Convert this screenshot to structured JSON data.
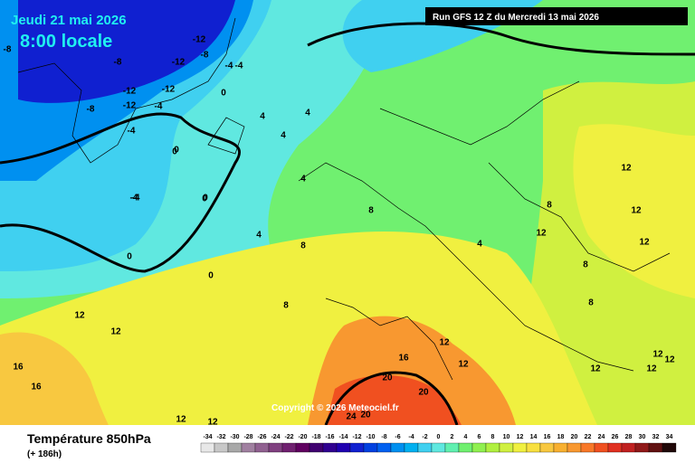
{
  "header": {
    "date": "Jeudi 21 mai 2026",
    "time": "8:00 locale",
    "run": "Run GFS 12 Z du Mercredi 13 mai 2026"
  },
  "copyright": "Copyright © 2026 Meteociel.fr",
  "footer": {
    "title": "Température 850hPa",
    "lead": "(+ 186h)"
  },
  "legend": {
    "values": [
      -34,
      -32,
      -30,
      -28,
      -26,
      -24,
      -22,
      -20,
      -18,
      -16,
      -14,
      -12,
      -10,
      -8,
      -6,
      -4,
      -2,
      0,
      2,
      4,
      6,
      8,
      10,
      12,
      14,
      16,
      18,
      20,
      22,
      24,
      26,
      28,
      30,
      32,
      34
    ],
    "colors": [
      "#e8e8e8",
      "#c8c8c8",
      "#a8a8a8",
      "#a080a0",
      "#906090",
      "#804080",
      "#702070",
      "#600060",
      "#400070",
      "#300090",
      "#2000b0",
      "#1020d0",
      "#0040e0",
      "#0060f0",
      "#0090f0",
      "#00b0f0",
      "#40d0f0",
      "#60e8e0",
      "#60f0b0",
      "#70f070",
      "#90f050",
      "#b0f040",
      "#d0f040",
      "#f0f040",
      "#f8e040",
      "#f8c840",
      "#f8b030",
      "#f89830",
      "#f87828",
      "#f05020",
      "#e03020",
      "#c02020",
      "#901818",
      "#601010",
      "#200808"
    ]
  },
  "contour_labels": [
    "-12",
    "-8",
    "-8",
    "-12",
    "-12",
    "-8",
    "-12",
    "-12",
    "-8",
    "-4",
    "-4",
    "0",
    "-4",
    "-4",
    "0",
    "4",
    "4",
    "4",
    "0",
    "0",
    "-4",
    "0",
    "0",
    "4",
    "4",
    "8",
    "8",
    "12",
    "12",
    "12",
    "12",
    "16",
    "16",
    "16",
    "20",
    "20",
    "24",
    "20",
    "12",
    "12",
    "8",
    "12",
    "12",
    "12",
    "12",
    "8",
    "8",
    "4",
    "8",
    "12",
    "12",
    "-4",
    "0",
    "12",
    "12"
  ]
}
